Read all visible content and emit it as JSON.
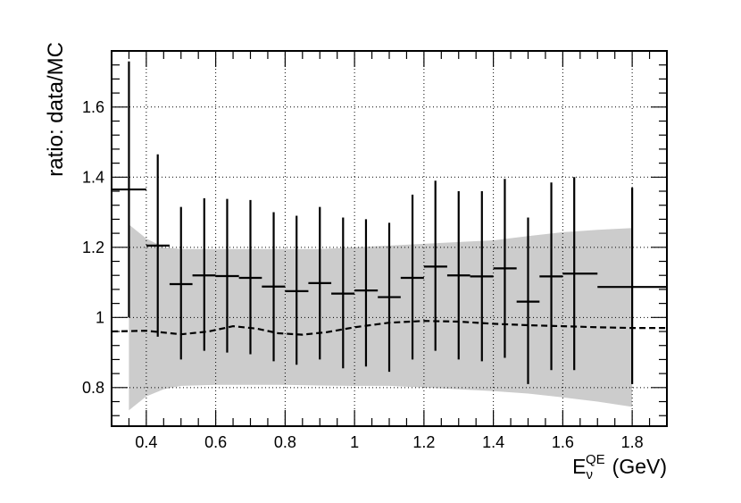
{
  "chart_data": {
    "type": "scatter",
    "title": "",
    "xlabel": "E",
    "xlabel_subscript": "ν",
    "xlabel_superscript": "QE",
    "xlabel_unit": "(GeV)",
    "ylabel": "ratio: data/MC",
    "xlim": [
      0.3,
      1.9
    ],
    "ylim": [
      0.69,
      1.76
    ],
    "grid": true,
    "x_ticks": [
      0.4,
      0.6,
      0.8,
      1,
      1.2,
      1.4,
      1.6,
      1.8
    ],
    "x_tick_labels": [
      "0.4",
      "0.6",
      "0.8",
      "1",
      "1.2",
      "1.4",
      "1.6",
      "1.8"
    ],
    "y_ticks": [
      0.8,
      1,
      1.2,
      1.4,
      1.6
    ],
    "y_tick_labels": [
      "0.8",
      "1",
      "1.2",
      "1.4",
      "1.6"
    ],
    "points": [
      {
        "x": 0.35,
        "xlo": 0.3,
        "xhi": 0.4,
        "y": 1.365,
        "ylo": 1.0,
        "yhi": 1.73
      },
      {
        "x": 0.433,
        "xlo": 0.4,
        "xhi": 0.467,
        "y": 1.205,
        "ylo": 0.945,
        "yhi": 1.465
      },
      {
        "x": 0.5,
        "xlo": 0.467,
        "xhi": 0.533,
        "y": 1.095,
        "ylo": 0.88,
        "yhi": 1.315
      },
      {
        "x": 0.567,
        "xlo": 0.533,
        "xhi": 0.6,
        "y": 1.12,
        "ylo": 0.905,
        "yhi": 1.34
      },
      {
        "x": 0.633,
        "xlo": 0.6,
        "xhi": 0.667,
        "y": 1.118,
        "ylo": 0.9,
        "yhi": 1.338
      },
      {
        "x": 0.7,
        "xlo": 0.667,
        "xhi": 0.733,
        "y": 1.113,
        "ylo": 0.895,
        "yhi": 1.335
      },
      {
        "x": 0.767,
        "xlo": 0.733,
        "xhi": 0.8,
        "y": 1.088,
        "ylo": 0.875,
        "yhi": 1.3
      },
      {
        "x": 0.833,
        "xlo": 0.8,
        "xhi": 0.867,
        "y": 1.075,
        "ylo": 0.865,
        "yhi": 1.29
      },
      {
        "x": 0.9,
        "xlo": 0.867,
        "xhi": 0.933,
        "y": 1.098,
        "ylo": 0.88,
        "yhi": 1.315
      },
      {
        "x": 0.967,
        "xlo": 0.933,
        "xhi": 1.0,
        "y": 1.068,
        "ylo": 0.855,
        "yhi": 1.285
      },
      {
        "x": 1.033,
        "xlo": 1.0,
        "xhi": 1.067,
        "y": 1.077,
        "ylo": 0.86,
        "yhi": 1.28
      },
      {
        "x": 1.1,
        "xlo": 1.067,
        "xhi": 1.133,
        "y": 1.058,
        "ylo": 0.845,
        "yhi": 1.27
      },
      {
        "x": 1.167,
        "xlo": 1.133,
        "xhi": 1.2,
        "y": 1.113,
        "ylo": 0.88,
        "yhi": 1.35
      },
      {
        "x": 1.233,
        "xlo": 1.2,
        "xhi": 1.267,
        "y": 1.145,
        "ylo": 0.905,
        "yhi": 1.39
      },
      {
        "x": 1.3,
        "xlo": 1.267,
        "xhi": 1.333,
        "y": 1.12,
        "ylo": 0.88,
        "yhi": 1.36
      },
      {
        "x": 1.367,
        "xlo": 1.333,
        "xhi": 1.4,
        "y": 1.117,
        "ylo": 0.875,
        "yhi": 1.36
      },
      {
        "x": 1.433,
        "xlo": 1.4,
        "xhi": 1.467,
        "y": 1.14,
        "ylo": 0.885,
        "yhi": 1.395
      },
      {
        "x": 1.5,
        "xlo": 1.467,
        "xhi": 1.533,
        "y": 1.045,
        "ylo": 0.81,
        "yhi": 1.285
      },
      {
        "x": 1.567,
        "xlo": 1.533,
        "xhi": 1.6,
        "y": 1.117,
        "ylo": 0.85,
        "yhi": 1.385
      },
      {
        "x": 1.633,
        "xlo": 1.6,
        "xhi": 1.7,
        "y": 1.125,
        "ylo": 0.85,
        "yhi": 1.4
      },
      {
        "x": 1.8,
        "xlo": 1.7,
        "xhi": 1.9,
        "y": 1.087,
        "ylo": 0.81,
        "yhi": 1.37
      }
    ],
    "band_upper": [
      {
        "x": 0.35,
        "y": 1.265
      },
      {
        "x": 0.4,
        "y": 1.225
      },
      {
        "x": 0.45,
        "y": 1.2
      },
      {
        "x": 0.5,
        "y": 1.195
      },
      {
        "x": 0.6,
        "y": 1.195
      },
      {
        "x": 0.7,
        "y": 1.195
      },
      {
        "x": 0.8,
        "y": 1.195
      },
      {
        "x": 0.9,
        "y": 1.195
      },
      {
        "x": 1.0,
        "y": 1.2
      },
      {
        "x": 1.1,
        "y": 1.205
      },
      {
        "x": 1.2,
        "y": 1.21
      },
      {
        "x": 1.3,
        "y": 1.215
      },
      {
        "x": 1.4,
        "y": 1.22
      },
      {
        "x": 1.5,
        "y": 1.232
      },
      {
        "x": 1.6,
        "y": 1.243
      },
      {
        "x": 1.7,
        "y": 1.25
      },
      {
        "x": 1.8,
        "y": 1.255
      }
    ],
    "band_lower": [
      {
        "x": 0.35,
        "y": 0.735
      },
      {
        "x": 0.4,
        "y": 0.775
      },
      {
        "x": 0.45,
        "y": 0.795
      },
      {
        "x": 0.5,
        "y": 0.805
      },
      {
        "x": 0.6,
        "y": 0.808
      },
      {
        "x": 0.7,
        "y": 0.808
      },
      {
        "x": 0.8,
        "y": 0.808
      },
      {
        "x": 0.9,
        "y": 0.806
      },
      {
        "x": 1.0,
        "y": 0.805
      },
      {
        "x": 1.1,
        "y": 0.805
      },
      {
        "x": 1.2,
        "y": 0.8
      },
      {
        "x": 1.3,
        "y": 0.795
      },
      {
        "x": 1.4,
        "y": 0.79
      },
      {
        "x": 1.5,
        "y": 0.783
      },
      {
        "x": 1.6,
        "y": 0.772
      },
      {
        "x": 1.7,
        "y": 0.76
      },
      {
        "x": 1.8,
        "y": 0.745
      }
    ],
    "dashed_line": [
      {
        "x": 0.3,
        "y": 0.96
      },
      {
        "x": 0.4,
        "y": 0.962
      },
      {
        "x": 0.47,
        "y": 0.955
      },
      {
        "x": 0.5,
        "y": 0.952
      },
      {
        "x": 0.58,
        "y": 0.96
      },
      {
        "x": 0.65,
        "y": 0.975
      },
      {
        "x": 0.72,
        "y": 0.968
      },
      {
        "x": 0.78,
        "y": 0.955
      },
      {
        "x": 0.85,
        "y": 0.951
      },
      {
        "x": 0.92,
        "y": 0.958
      },
      {
        "x": 1.0,
        "y": 0.972
      },
      {
        "x": 1.1,
        "y": 0.985
      },
      {
        "x": 1.2,
        "y": 0.99
      },
      {
        "x": 1.3,
        "y": 0.988
      },
      {
        "x": 1.4,
        "y": 0.982
      },
      {
        "x": 1.5,
        "y": 0.978
      },
      {
        "x": 1.6,
        "y": 0.975
      },
      {
        "x": 1.7,
        "y": 0.972
      },
      {
        "x": 1.8,
        "y": 0.97
      },
      {
        "x": 1.9,
        "y": 0.97
      }
    ],
    "colors": {
      "band": "#cccccc",
      "points": "#000000",
      "dashed": "#000000",
      "grid": "#000000",
      "frame": "#000000"
    }
  }
}
